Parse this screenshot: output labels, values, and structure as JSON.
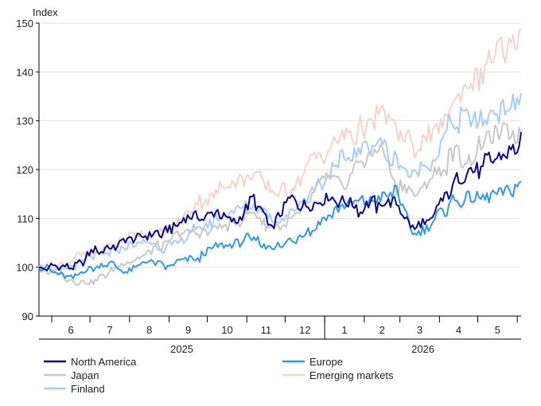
{
  "chart_data": {
    "type": "line",
    "title": "",
    "ylabel": "Index",
    "xlabel": "",
    "ylim": [
      90,
      150
    ],
    "yticks": [
      90,
      100,
      110,
      120,
      130,
      140,
      150
    ],
    "grid": "horizontal",
    "legend": "bottom",
    "month_ticks": [
      "6",
      "7",
      "8",
      "9",
      "10",
      "11",
      "12",
      "1",
      "2",
      "3",
      "4",
      "5"
    ],
    "year_labels": [
      "2025",
      "2026"
    ],
    "x_range": [
      "2025-05-22",
      "2026-06-04"
    ],
    "series": [
      {
        "name": "North America",
        "color": "#0a0a8c",
        "points": [
          [
            "2025-05-22",
            100
          ],
          [
            "2025-06-05",
            100
          ],
          [
            "2025-06-19",
            100
          ],
          [
            "2025-07-03",
            103
          ],
          [
            "2025-07-17",
            104
          ],
          [
            "2025-07-31",
            105.5
          ],
          [
            "2025-08-14",
            106
          ],
          [
            "2025-08-28",
            107
          ],
          [
            "2025-09-11",
            110
          ],
          [
            "2025-09-25",
            110
          ],
          [
            "2025-10-09",
            112
          ],
          [
            "2025-10-23",
            109
          ],
          [
            "2025-11-06",
            114
          ],
          [
            "2025-11-20",
            108
          ],
          [
            "2025-12-04",
            114
          ],
          [
            "2025-12-18",
            113
          ],
          [
            "2026-01-01",
            115
          ],
          [
            "2026-01-15",
            113
          ],
          [
            "2026-01-29",
            112
          ],
          [
            "2026-02-12",
            113
          ],
          [
            "2026-02-26",
            113
          ],
          [
            "2026-03-12",
            108
          ],
          [
            "2026-03-26",
            110
          ],
          [
            "2026-04-09",
            116
          ],
          [
            "2026-04-23",
            119
          ],
          [
            "2026-05-07",
            121
          ],
          [
            "2026-05-21",
            124
          ],
          [
            "2026-06-04",
            126
          ]
        ]
      },
      {
        "name": "Europe",
        "color": "#3399e6",
        "points": [
          [
            "2025-05-22",
            100
          ],
          [
            "2025-06-05",
            99
          ],
          [
            "2025-06-19",
            98
          ],
          [
            "2025-07-03",
            100
          ],
          [
            "2025-07-17",
            101
          ],
          [
            "2025-07-31",
            99
          ],
          [
            "2025-08-14",
            101
          ],
          [
            "2025-08-28",
            100
          ],
          [
            "2025-09-11",
            101
          ],
          [
            "2025-09-25",
            102
          ],
          [
            "2025-10-09",
            104
          ],
          [
            "2025-10-23",
            105
          ],
          [
            "2025-11-06",
            106
          ],
          [
            "2025-11-20",
            104
          ],
          [
            "2025-12-04",
            105
          ],
          [
            "2025-12-18",
            107
          ],
          [
            "2026-01-01",
            110
          ],
          [
            "2026-01-15",
            112
          ],
          [
            "2026-01-29",
            113
          ],
          [
            "2026-02-12",
            114
          ],
          [
            "2026-02-26",
            116
          ],
          [
            "2026-03-12",
            106
          ],
          [
            "2026-03-26",
            109
          ],
          [
            "2026-04-09",
            113
          ],
          [
            "2026-04-23",
            114
          ],
          [
            "2026-05-07",
            115
          ],
          [
            "2026-05-21",
            116
          ],
          [
            "2026-06-04",
            117
          ]
        ]
      },
      {
        "name": "Japan",
        "color": "#c8c8c8",
        "points": [
          [
            "2025-05-22",
            100
          ],
          [
            "2025-06-05",
            99
          ],
          [
            "2025-06-19",
            97
          ],
          [
            "2025-07-03",
            97
          ],
          [
            "2025-07-17",
            99
          ],
          [
            "2025-07-31",
            101
          ],
          [
            "2025-08-14",
            103
          ],
          [
            "2025-08-28",
            105
          ],
          [
            "2025-09-11",
            107
          ],
          [
            "2025-09-25",
            107
          ],
          [
            "2025-10-09",
            108
          ],
          [
            "2025-10-23",
            109
          ],
          [
            "2025-11-06",
            111
          ],
          [
            "2025-11-20",
            108
          ],
          [
            "2025-12-04",
            109
          ],
          [
            "2025-12-18",
            112
          ],
          [
            "2026-01-01",
            118
          ],
          [
            "2026-01-15",
            117
          ],
          [
            "2026-01-29",
            121
          ],
          [
            "2026-02-12",
            125
          ],
          [
            "2026-02-26",
            117
          ],
          [
            "2026-03-12",
            115
          ],
          [
            "2026-03-26",
            118
          ],
          [
            "2026-04-09",
            122
          ],
          [
            "2026-04-23",
            123
          ],
          [
            "2026-05-07",
            125
          ],
          [
            "2026-05-21",
            128
          ],
          [
            "2026-06-04",
            128
          ]
        ]
      },
      {
        "name": "Emerging markets",
        "color": "#f8d3c5",
        "points": [
          [
            "2025-05-22",
            100
          ],
          [
            "2025-06-05",
            100
          ],
          [
            "2025-06-19",
            102
          ],
          [
            "2025-07-03",
            103
          ],
          [
            "2025-07-17",
            104
          ],
          [
            "2025-07-31",
            106
          ],
          [
            "2025-08-14",
            107
          ],
          [
            "2025-08-28",
            107
          ],
          [
            "2025-09-11",
            110
          ],
          [
            "2025-09-25",
            113
          ],
          [
            "2025-10-09",
            116
          ],
          [
            "2025-10-23",
            117
          ],
          [
            "2025-11-06",
            119
          ],
          [
            "2025-11-20",
            115
          ],
          [
            "2025-12-04",
            116
          ],
          [
            "2025-12-18",
            120
          ],
          [
            "2026-01-01",
            124
          ],
          [
            "2026-01-15",
            126
          ],
          [
            "2026-01-29",
            128
          ],
          [
            "2026-02-12",
            131
          ],
          [
            "2026-02-26",
            129
          ],
          [
            "2026-03-12",
            124
          ],
          [
            "2026-03-26",
            127
          ],
          [
            "2026-04-09",
            132
          ],
          [
            "2026-04-23",
            136
          ],
          [
            "2026-05-07",
            141
          ],
          [
            "2026-05-21",
            144
          ],
          [
            "2026-06-04",
            147
          ]
        ]
      },
      {
        "name": "Finland",
        "color": "#a8cef5",
        "points": [
          [
            "2025-05-22",
            100
          ],
          [
            "2025-06-05",
            99
          ],
          [
            "2025-06-19",
            100
          ],
          [
            "2025-07-03",
            102
          ],
          [
            "2025-07-17",
            103
          ],
          [
            "2025-07-31",
            104
          ],
          [
            "2025-08-14",
            105
          ],
          [
            "2025-08-28",
            104
          ],
          [
            "2025-09-11",
            106
          ],
          [
            "2025-09-25",
            108
          ],
          [
            "2025-10-09",
            110
          ],
          [
            "2025-10-23",
            111
          ],
          [
            "2025-11-06",
            113
          ],
          [
            "2025-11-20",
            110
          ],
          [
            "2025-12-04",
            110
          ],
          [
            "2025-12-18",
            114
          ],
          [
            "2026-01-01",
            118
          ],
          [
            "2026-01-15",
            122
          ],
          [
            "2026-01-29",
            124
          ],
          [
            "2026-02-12",
            127
          ],
          [
            "2026-02-26",
            121
          ],
          [
            "2026-03-12",
            118
          ],
          [
            "2026-03-26",
            122
          ],
          [
            "2026-04-09",
            129
          ],
          [
            "2026-04-23",
            131
          ],
          [
            "2026-05-07",
            130
          ],
          [
            "2026-05-21",
            133
          ],
          [
            "2026-06-04",
            135
          ]
        ]
      }
    ]
  }
}
